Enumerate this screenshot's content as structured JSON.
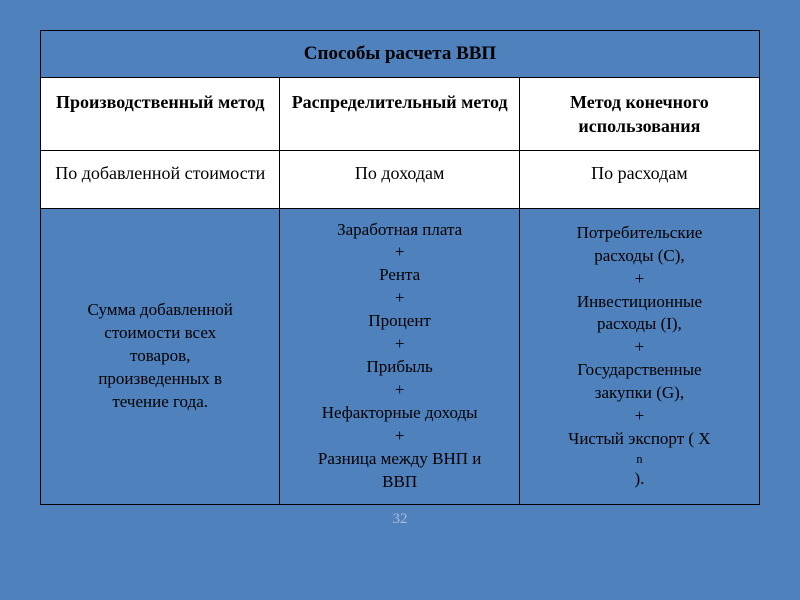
{
  "table": {
    "title": "Способы расчета ВВП",
    "columns": [
      {
        "method": "Производственный метод",
        "by": "По добавленной стоимости",
        "content_lines": [
          "Сумма добавленной",
          "стоимости всех",
          "товаров,",
          "произведенных в",
          "течение года."
        ]
      },
      {
        "method": "Распределительный метод",
        "by": "По доходам",
        "content_lines": [
          "Заработная плата",
          "+",
          "Рента",
          "+",
          "Процент",
          "+",
          "Прибыль",
          "+",
          "Нефакторные доходы",
          "+",
          "Разница между ВНП и",
          "ВВП"
        ]
      },
      {
        "method": "Метод конечного использования",
        "by": "По расходам",
        "content_lines": [
          "Потребительские",
          "расходы (C),",
          "+",
          "Инвестиционные",
          "расходы (I),",
          "+",
          "Государственные",
          "закупки (G),",
          "+",
          "Чистый экспорт ( X{sub:n})."
        ]
      }
    ],
    "colors": {
      "background": "#4f81bd",
      "cell_white": "#ffffff",
      "border": "#000000",
      "pagenum": "#a8bedb"
    },
    "typography": {
      "font_family": "Times New Roman",
      "title_fontsize": 19,
      "method_fontsize": 18,
      "by_fontsize": 18,
      "content_fontsize": 17,
      "title_weight": "bold",
      "method_weight": "bold"
    },
    "layout": {
      "col_widths_pct": [
        33.3,
        33.3,
        33.4
      ]
    }
  },
  "page_number": "32"
}
